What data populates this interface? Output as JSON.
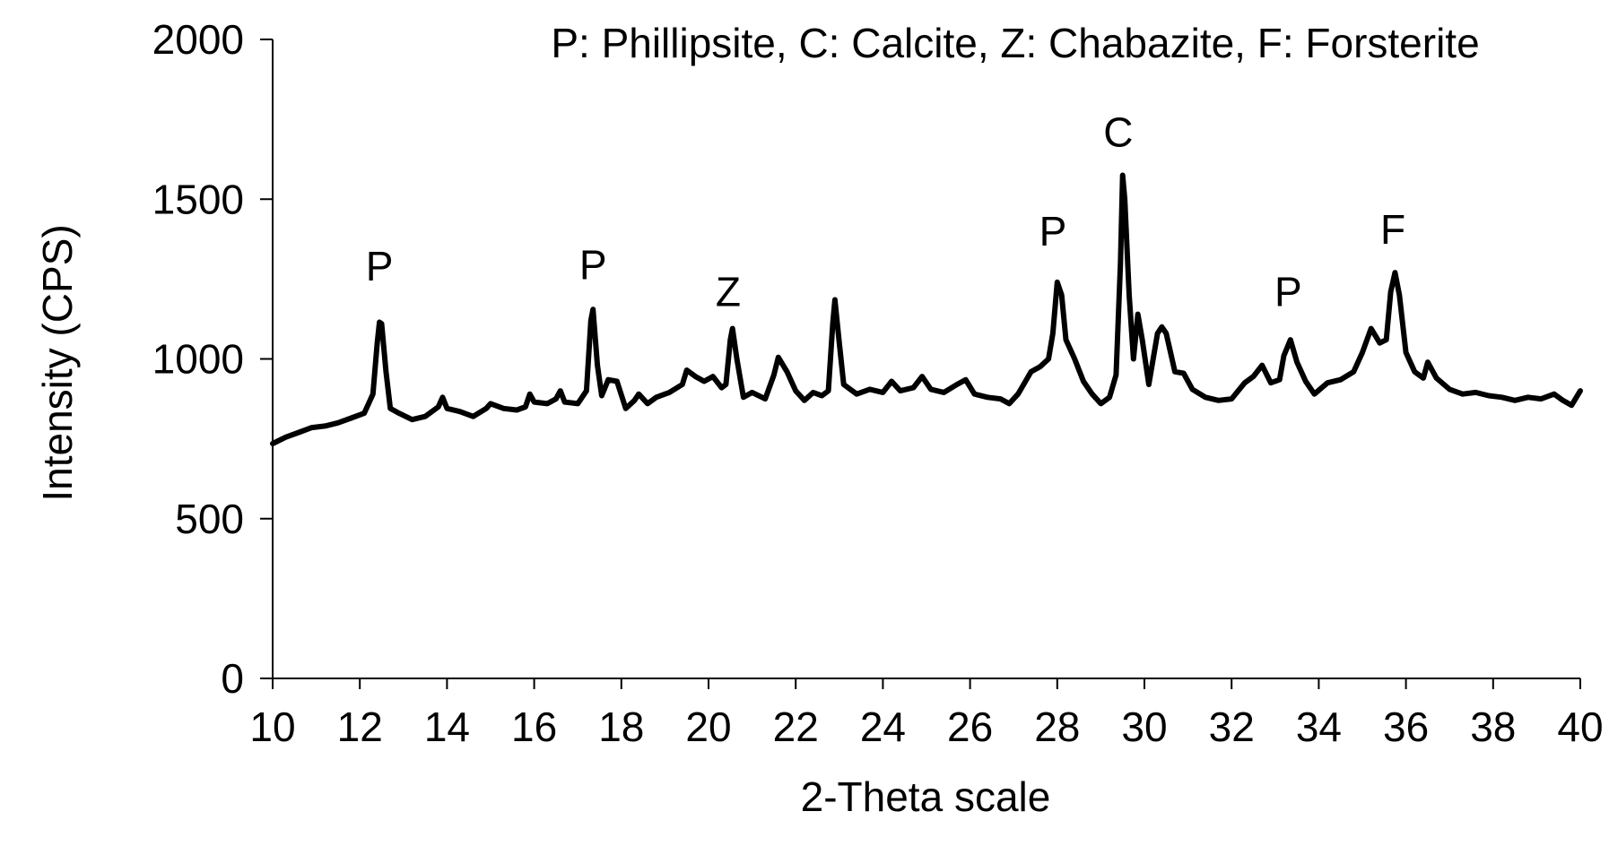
{
  "chart_data": {
    "type": "line",
    "title": "",
    "legend_note": "P: Phillipsite, C: Calcite, Z: Chabazite, F: Forsterite",
    "xlabel": "2-Theta scale",
    "ylabel": "Intensity (CPS)",
    "xlim": [
      10,
      40
    ],
    "ylim": [
      0,
      2000
    ],
    "x_ticks": [
      10,
      12,
      14,
      16,
      18,
      20,
      22,
      24,
      26,
      28,
      30,
      32,
      34,
      36,
      38,
      40
    ],
    "y_ticks": [
      0,
      500,
      1000,
      1500,
      2000
    ],
    "grid": false,
    "line_color": "#000000",
    "series": [
      {
        "values": [
          [
            10.0,
            735
          ],
          [
            10.3,
            755
          ],
          [
            10.6,
            770
          ],
          [
            10.9,
            785
          ],
          [
            11.2,
            790
          ],
          [
            11.5,
            800
          ],
          [
            11.8,
            815
          ],
          [
            12.1,
            830
          ],
          [
            12.3,
            890
          ],
          [
            12.4,
            1050
          ],
          [
            12.45,
            1115
          ],
          [
            12.5,
            1110
          ],
          [
            12.6,
            960
          ],
          [
            12.7,
            845
          ],
          [
            12.9,
            830
          ],
          [
            13.2,
            810
          ],
          [
            13.5,
            820
          ],
          [
            13.8,
            850
          ],
          [
            13.9,
            880
          ],
          [
            14.0,
            845
          ],
          [
            14.3,
            835
          ],
          [
            14.6,
            820
          ],
          [
            14.9,
            845
          ],
          [
            15.0,
            860
          ],
          [
            15.3,
            845
          ],
          [
            15.6,
            840
          ],
          [
            15.8,
            850
          ],
          [
            15.9,
            890
          ],
          [
            16.0,
            865
          ],
          [
            16.3,
            860
          ],
          [
            16.5,
            875
          ],
          [
            16.6,
            900
          ],
          [
            16.7,
            865
          ],
          [
            17.0,
            860
          ],
          [
            17.2,
            900
          ],
          [
            17.3,
            1120
          ],
          [
            17.35,
            1155
          ],
          [
            17.45,
            980
          ],
          [
            17.55,
            885
          ],
          [
            17.7,
            935
          ],
          [
            17.9,
            930
          ],
          [
            18.1,
            845
          ],
          [
            18.3,
            870
          ],
          [
            18.4,
            890
          ],
          [
            18.6,
            860
          ],
          [
            18.8,
            880
          ],
          [
            19.1,
            895
          ],
          [
            19.4,
            920
          ],
          [
            19.5,
            965
          ],
          [
            19.7,
            945
          ],
          [
            19.9,
            930
          ],
          [
            20.1,
            945
          ],
          [
            20.3,
            910
          ],
          [
            20.4,
            920
          ],
          [
            20.5,
            1060
          ],
          [
            20.55,
            1095
          ],
          [
            20.65,
            1000
          ],
          [
            20.8,
            880
          ],
          [
            21.0,
            895
          ],
          [
            21.3,
            875
          ],
          [
            21.5,
            950
          ],
          [
            21.6,
            1005
          ],
          [
            21.8,
            960
          ],
          [
            22.0,
            900
          ],
          [
            22.2,
            870
          ],
          [
            22.4,
            895
          ],
          [
            22.6,
            885
          ],
          [
            22.75,
            900
          ],
          [
            22.85,
            1110
          ],
          [
            22.9,
            1185
          ],
          [
            23.0,
            1050
          ],
          [
            23.1,
            920
          ],
          [
            23.4,
            890
          ],
          [
            23.7,
            905
          ],
          [
            24.0,
            895
          ],
          [
            24.2,
            930
          ],
          [
            24.4,
            900
          ],
          [
            24.7,
            910
          ],
          [
            24.9,
            945
          ],
          [
            25.1,
            905
          ],
          [
            25.4,
            895
          ],
          [
            25.7,
            920
          ],
          [
            25.9,
            935
          ],
          [
            26.1,
            890
          ],
          [
            26.4,
            880
          ],
          [
            26.7,
            875
          ],
          [
            26.9,
            860
          ],
          [
            27.1,
            890
          ],
          [
            27.4,
            960
          ],
          [
            27.6,
            975
          ],
          [
            27.8,
            1000
          ],
          [
            27.9,
            1080
          ],
          [
            28.0,
            1240
          ],
          [
            28.1,
            1200
          ],
          [
            28.2,
            1060
          ],
          [
            28.4,
            1000
          ],
          [
            28.6,
            930
          ],
          [
            28.8,
            890
          ],
          [
            29.0,
            860
          ],
          [
            29.2,
            880
          ],
          [
            29.35,
            950
          ],
          [
            29.45,
            1300
          ],
          [
            29.5,
            1575
          ],
          [
            29.55,
            1500
          ],
          [
            29.65,
            1200
          ],
          [
            29.75,
            1000
          ],
          [
            29.85,
            1140
          ],
          [
            29.95,
            1060
          ],
          [
            30.1,
            920
          ],
          [
            30.3,
            1080
          ],
          [
            30.4,
            1100
          ],
          [
            30.5,
            1080
          ],
          [
            30.7,
            960
          ],
          [
            30.9,
            955
          ],
          [
            31.1,
            905
          ],
          [
            31.4,
            880
          ],
          [
            31.7,
            870
          ],
          [
            32.0,
            875
          ],
          [
            32.3,
            925
          ],
          [
            32.5,
            945
          ],
          [
            32.7,
            980
          ],
          [
            32.9,
            925
          ],
          [
            33.1,
            935
          ],
          [
            33.2,
            1010
          ],
          [
            33.35,
            1060
          ],
          [
            33.5,
            990
          ],
          [
            33.7,
            930
          ],
          [
            33.9,
            890
          ],
          [
            34.2,
            925
          ],
          [
            34.5,
            935
          ],
          [
            34.8,
            960
          ],
          [
            35.0,
            1020
          ],
          [
            35.2,
            1095
          ],
          [
            35.4,
            1050
          ],
          [
            35.55,
            1060
          ],
          [
            35.65,
            1210
          ],
          [
            35.75,
            1270
          ],
          [
            35.85,
            1200
          ],
          [
            36.0,
            1020
          ],
          [
            36.2,
            960
          ],
          [
            36.4,
            940
          ],
          [
            36.5,
            990
          ],
          [
            36.7,
            940
          ],
          [
            37.0,
            905
          ],
          [
            37.3,
            890
          ],
          [
            37.6,
            895
          ],
          [
            37.9,
            885
          ],
          [
            38.2,
            880
          ],
          [
            38.5,
            870
          ],
          [
            38.8,
            880
          ],
          [
            39.1,
            875
          ],
          [
            39.4,
            890
          ],
          [
            39.6,
            870
          ],
          [
            39.8,
            855
          ],
          [
            40.0,
            900
          ]
        ]
      }
    ],
    "annotations": [
      {
        "text": "P",
        "x": 12.45,
        "y": 1245
      },
      {
        "text": "P",
        "x": 17.35,
        "y": 1250
      },
      {
        "text": "Z",
        "x": 20.45,
        "y": 1165
      },
      {
        "text": "P",
        "x": 27.9,
        "y": 1355
      },
      {
        "text": "C",
        "x": 29.4,
        "y": 1665
      },
      {
        "text": "P",
        "x": 33.3,
        "y": 1165
      },
      {
        "text": "F",
        "x": 35.7,
        "y": 1360
      }
    ]
  }
}
